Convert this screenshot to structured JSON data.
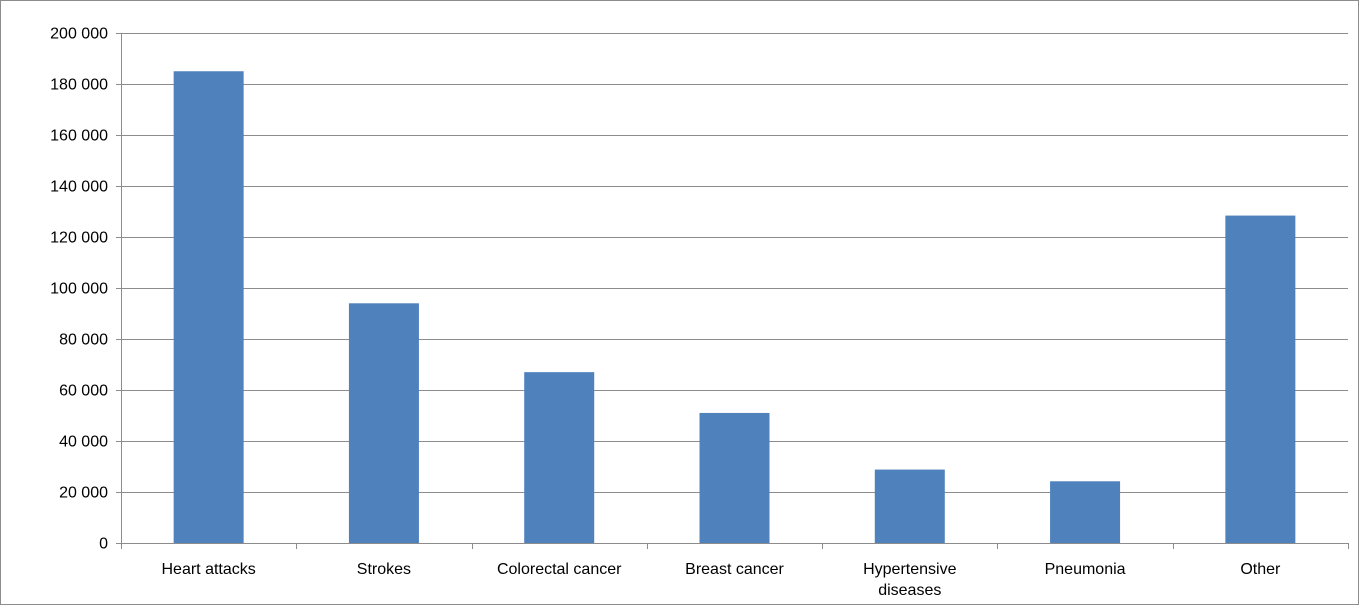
{
  "chart_data": {
    "type": "bar",
    "title": "",
    "xlabel": "",
    "ylabel": "",
    "categories": [
      "Heart attacks",
      "Strokes",
      "Colorectal cancer",
      "Breast cancer",
      "Hypertensive diseases",
      "Pneumonia",
      "Other"
    ],
    "category_label_lines": [
      [
        "Heart attacks"
      ],
      [
        "Strokes"
      ],
      [
        "Colorectal cancer"
      ],
      [
        "Breast cancer"
      ],
      [
        "Hypertensive",
        "diseases"
      ],
      [
        "Pneumonia"
      ],
      [
        "Other"
      ]
    ],
    "values": [
      185000,
      94000,
      67000,
      51000,
      28800,
      24200,
      128400
    ],
    "ylim": [
      0,
      200000
    ],
    "yticks": [
      0,
      20000,
      40000,
      60000,
      80000,
      100000,
      120000,
      140000,
      160000,
      180000,
      200000
    ],
    "ytick_labels": [
      "0",
      "20 000",
      "40 000",
      "60 000",
      "80 000",
      "100 000",
      "120 000",
      "140 000",
      "160 000",
      "180 000",
      "200 000"
    ],
    "grid": true,
    "legend": "none",
    "bar_color": "#4f81bd",
    "grid_color": "#8c8c8c",
    "axis_color": "#8c8c8c"
  }
}
